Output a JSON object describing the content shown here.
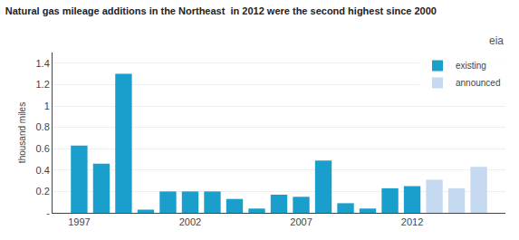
{
  "chart_data": {
    "type": "bar",
    "title": "Natural gas mileage additions in the Northeast  in 2012 were the second highest since 2000",
    "ylabel": "thousand miles",
    "annotations": [
      "eia"
    ],
    "x": [
      1997,
      1998,
      1999,
      2000,
      2001,
      2002,
      2003,
      2004,
      2005,
      2006,
      2007,
      2008,
      2009,
      2010,
      2011,
      2012,
      2013,
      2014,
      2015
    ],
    "series": [
      {
        "name": "existing",
        "color": "#1a9fcc",
        "values": [
          0.63,
          0.46,
          1.3,
          0.03,
          0.2,
          0.2,
          0.2,
          0.13,
          0.04,
          0.17,
          0.15,
          0.49,
          0.09,
          0.04,
          0.23,
          0.25,
          0,
          0,
          0
        ]
      },
      {
        "name": "announced",
        "color": "#c5d9f1",
        "values": [
          0,
          0,
          0,
          0,
          0,
          0,
          0,
          0,
          0,
          0,
          0,
          0,
          0,
          0,
          0,
          0,
          0.31,
          0.23,
          0.43
        ]
      }
    ],
    "xlim": [
      1995.8,
      2016.2
    ],
    "xticks": [
      1997,
      2002,
      2007,
      2012
    ],
    "ylim": [
      0,
      1.5
    ],
    "yticks": [
      {
        "value": 0,
        "label": "-"
      },
      0.2,
      0.4,
      0.6,
      0.8,
      1,
      1.2,
      1.4
    ],
    "grid": true,
    "legend": "upper right"
  }
}
